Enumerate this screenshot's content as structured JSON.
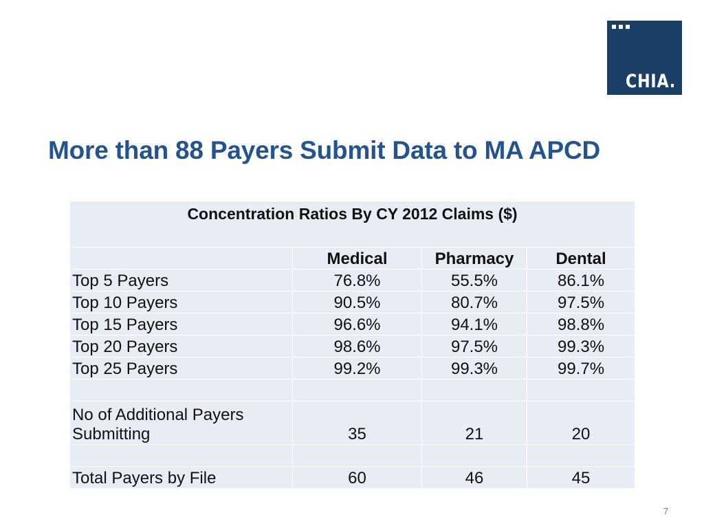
{
  "logo": {
    "text": "CHIA.",
    "color": "#1b3f66"
  },
  "title": "More than 88 Payers Submit Data to MA APCD",
  "table": {
    "caption": "Concentration Ratios By CY 2012 Claims ($)",
    "columns": [
      "",
      "Medical",
      "Pharmacy",
      "Dental"
    ],
    "concentration_rows": [
      {
        "label": "Top 5 Payers",
        "medical": "76.8%",
        "pharmacy": "55.5%",
        "dental": "86.1%"
      },
      {
        "label": "Top 10 Payers",
        "medical": "90.5%",
        "pharmacy": "80.7%",
        "dental": "97.5%"
      },
      {
        "label": "Top 15 Payers",
        "medical": "96.6%",
        "pharmacy": "94.1%",
        "dental": "98.8%"
      },
      {
        "label": "Top 20 Payers",
        "medical": "98.6%",
        "pharmacy": "97.5%",
        "dental": "99.3%"
      },
      {
        "label": "Top 25 Payers",
        "medical": "99.2%",
        "pharmacy": "99.3%",
        "dental": "99.7%"
      }
    ],
    "additional": {
      "label_line1": "No of Additional Payers",
      "label_line2": "Submitting",
      "medical": "35",
      "pharmacy": "21",
      "dental": "20"
    },
    "total": {
      "label": "Total Payers by File",
      "medical": "60",
      "pharmacy": "46",
      "dental": "45"
    }
  },
  "page_number": "7",
  "colors": {
    "title": "#24548f",
    "table_background": "#e8ecf5"
  }
}
